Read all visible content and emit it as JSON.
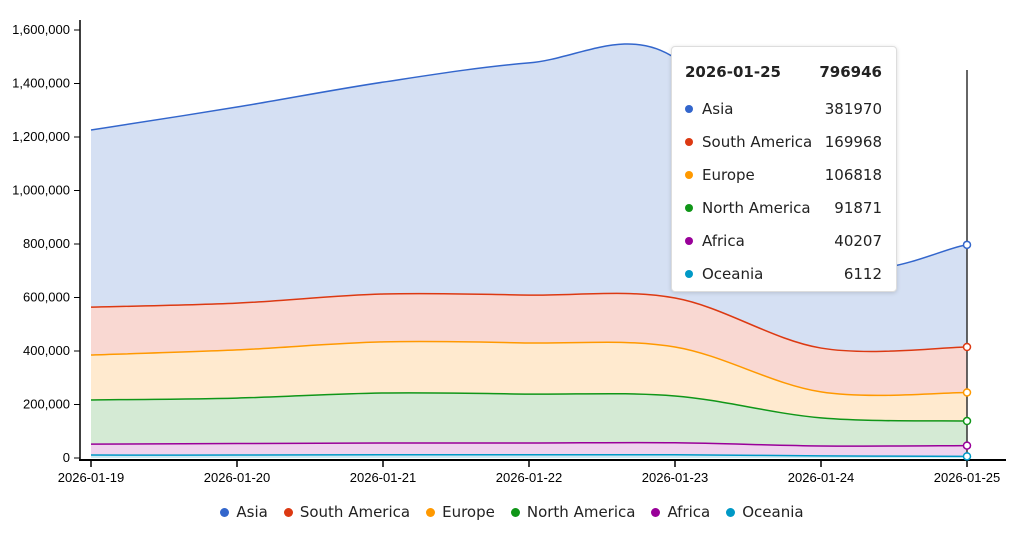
{
  "chart_data": {
    "type": "area",
    "stacked": true,
    "categories": [
      "2026-01-19",
      "2026-01-20",
      "2026-01-21",
      "2026-01-22",
      "2026-01-23",
      "2026-01-24",
      "2026-01-25"
    ],
    "ylim": [
      0,
      1600000
    ],
    "yticks": [
      "0",
      "200,000",
      "400,000",
      "600,000",
      "800,000",
      "1,000,000",
      "1,200,000",
      "1,400,000",
      "1,600,000"
    ],
    "ytick_values": [
      0,
      200000,
      400000,
      600000,
      800000,
      1000000,
      1200000,
      1400000,
      1600000
    ],
    "grid": false,
    "legend_position": "bottom",
    "series": [
      {
        "name": "Asia",
        "color": "#3366cc",
        "fill": "#d5e0f3",
        "values": [
          662000,
          733000,
          792000,
          868000,
          897000,
          337000,
          381970
        ]
      },
      {
        "name": "South America",
        "color": "#dc3912",
        "fill": "#f9d8d2",
        "values": [
          179000,
          175000,
          179000,
          179000,
          183000,
          164000,
          169968
        ]
      },
      {
        "name": "Europe",
        "color": "#ff9900",
        "fill": "#ffeacf",
        "values": [
          168000,
          180000,
          191000,
          191000,
          183000,
          97000,
          106818
        ]
      },
      {
        "name": "North America",
        "color": "#109618",
        "fill": "#d4ead4",
        "values": [
          165000,
          170000,
          187000,
          183000,
          175000,
          105000,
          91871
        ]
      },
      {
        "name": "Africa",
        "color": "#990099",
        "fill": "#efd3ee",
        "values": [
          41000,
          43000,
          44000,
          44000,
          45000,
          37000,
          40207
        ]
      },
      {
        "name": "Oceania",
        "color": "#0099c6",
        "fill": "#cfeaf3",
        "values": [
          11000,
          11000,
          12000,
          12000,
          12000,
          8000,
          6112
        ]
      }
    ]
  },
  "tooltip": {
    "date": "2026-01-25",
    "total": "796946",
    "rows": [
      {
        "name": "Asia",
        "value": "381970"
      },
      {
        "name": "South America",
        "value": "169968"
      },
      {
        "name": "Europe",
        "value": "106818"
      },
      {
        "name": "North America",
        "value": "91871"
      },
      {
        "name": "Africa",
        "value": "40207"
      },
      {
        "name": "Oceania",
        "value": "6112"
      }
    ]
  }
}
